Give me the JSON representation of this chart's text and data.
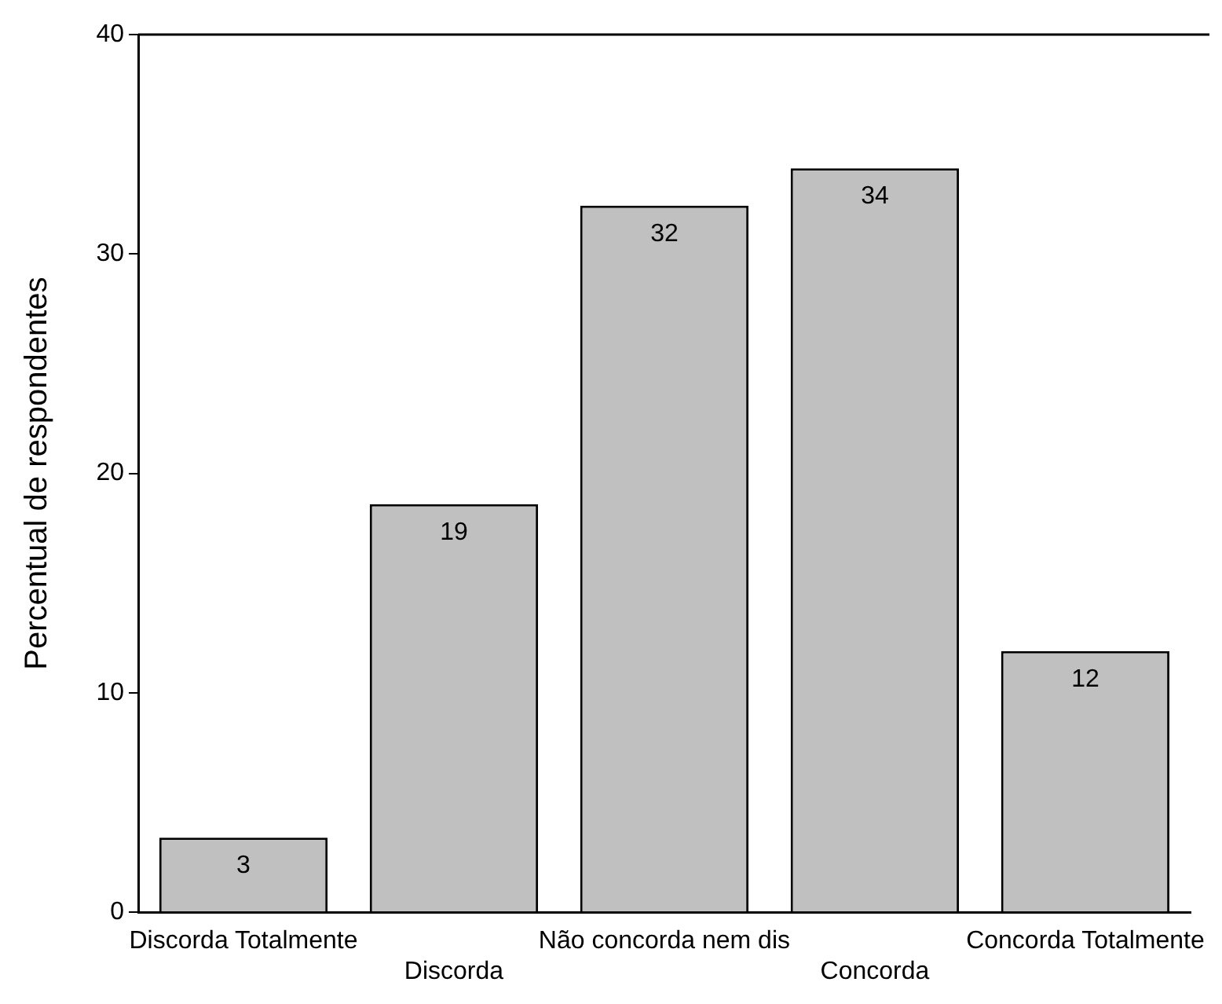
{
  "chart_data": {
    "type": "bar",
    "ylabel": "Percentual de respondentes",
    "categories": [
      "Discorda Totalmente",
      "Discorda",
      "Não concorda nem dis",
      "Concorda",
      "Concorda Totalmente"
    ],
    "values": [
      3.4,
      18.6,
      32.2,
      33.9,
      11.9
    ],
    "value_labels": [
      "3",
      "19",
      "32",
      "34",
      "12"
    ],
    "color": "#c0c0c0",
    "ylim": [
      0,
      40
    ],
    "yticks": [
      0,
      10,
      20,
      30,
      40
    ],
    "grid": false,
    "legend": false
  }
}
